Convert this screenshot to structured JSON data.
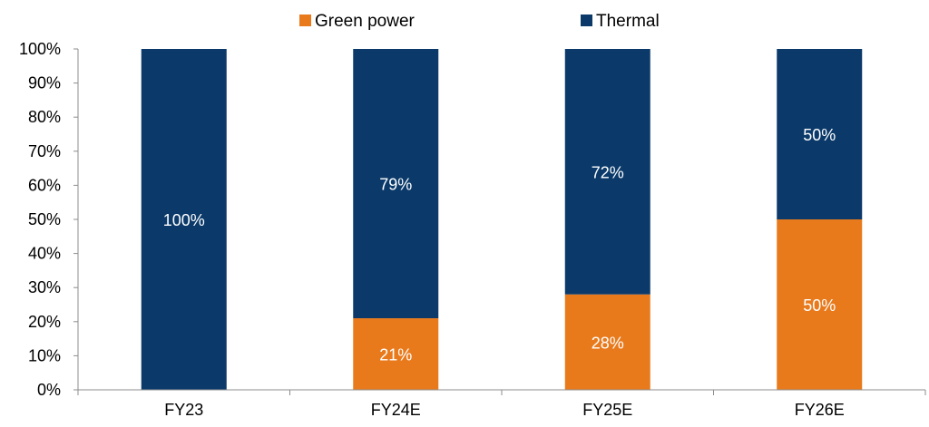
{
  "chart_data": {
    "type": "bar",
    "stacked": true,
    "categories": [
      "FY23",
      "FY24E",
      "FY25E",
      "FY26E"
    ],
    "series": [
      {
        "name": "Green power",
        "values": [
          0,
          21,
          28,
          50
        ],
        "labels": [
          "",
          "21%",
          "28%",
          "50%"
        ],
        "color": "#E87A1C"
      },
      {
        "name": "Thermal",
        "values": [
          100,
          79,
          72,
          50
        ],
        "labels": [
          "100%",
          "79%",
          "72%",
          "50%"
        ],
        "color": "#0B3A6A"
      }
    ],
    "ylim": [
      0,
      100
    ],
    "yticks": [
      "0%",
      "10%",
      "20%",
      "30%",
      "40%",
      "50%",
      "60%",
      "70%",
      "80%",
      "90%",
      "100%"
    ],
    "grid": false,
    "legend_position": "top"
  }
}
